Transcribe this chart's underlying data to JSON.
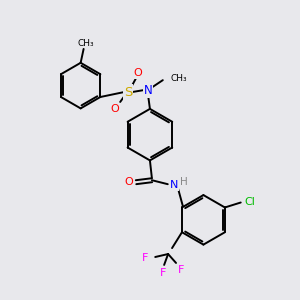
{
  "bg_color": "#e8e8ec",
  "bond_color": "#000000",
  "atom_colors": {
    "O": "#ff0000",
    "N": "#0000ff",
    "S": "#ccaa00",
    "Cl": "#00bb00",
    "F": "#ff00ff",
    "H": "#888888",
    "C": "#000000"
  },
  "font_size": 8.0
}
